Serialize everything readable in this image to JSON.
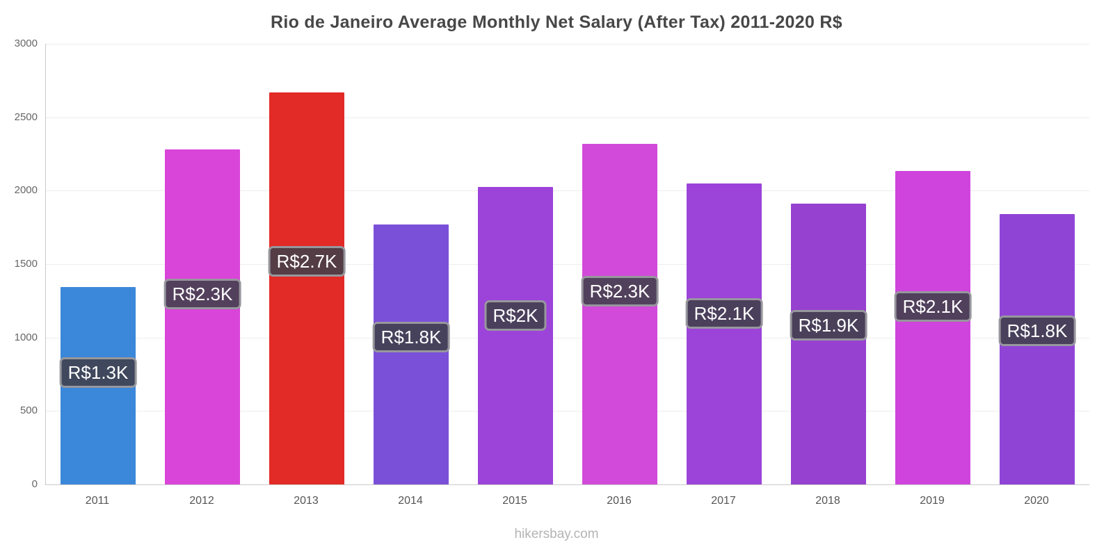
{
  "chart_data": {
    "type": "bar",
    "title": "Rio de Janeiro Average Monthly Net Salary (After Tax) 2011-2020 R$",
    "categories": [
      "2011",
      "2012",
      "2013",
      "2014",
      "2015",
      "2016",
      "2017",
      "2018",
      "2019",
      "2020"
    ],
    "values": [
      1345,
      2280,
      2670,
      1770,
      2025,
      2320,
      2050,
      1910,
      2135,
      1840
    ],
    "value_labels": [
      "R$1.3K",
      "R$2.3K",
      "R$2.7K",
      "R$1.8K",
      "R$2K",
      "R$2.3K",
      "R$2.1K",
      "R$1.9K",
      "R$2.1K",
      "R$1.8K"
    ],
    "bar_colors": [
      "#3b87da",
      "#d944d9",
      "#e22a26",
      "#7b50d9",
      "#9c43d9",
      "#d24ad9",
      "#9c43d9",
      "#9641cf",
      "#cf44dc",
      "#8f44d6"
    ],
    "xlabel": "",
    "ylabel": "",
    "ylim": [
      0,
      3000
    ],
    "y_ticks": [
      0,
      500,
      1000,
      1500,
      2000,
      2500,
      3000
    ],
    "grid": "horizontal",
    "legend": "none",
    "label_bg_color": "#40404a",
    "label_border_color": "#97979d"
  },
  "footer": {
    "text": "hikersbay.com"
  }
}
